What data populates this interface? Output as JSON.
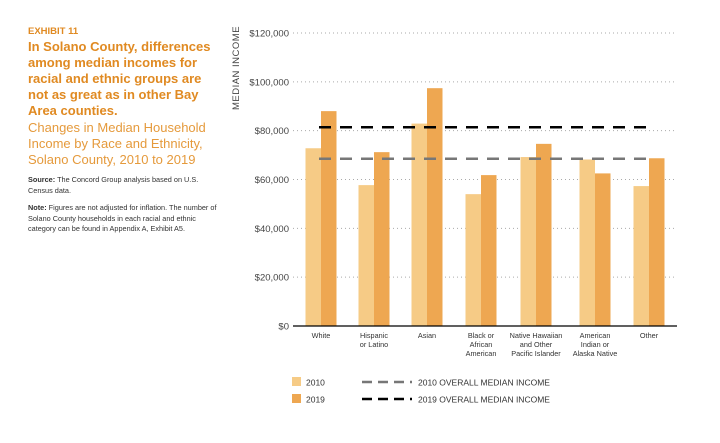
{
  "side": {
    "exhibit": "EXHIBIT 11",
    "headline": "In Solano County, differences among median incomes for racial and ethnic groups are not as great as in other Bay Area counties.",
    "subtitle": "Changes in Median Household Income by Race and Ethnicity, Solano County, 2010 to 2019",
    "source_label": "Source:",
    "source": " The Concord Group analysis based on U.S. Census data.",
    "note_label": "Note:",
    "note": " Figures are not adjusted for inflation. The number of Solano County households in each racial and ethnic category can be found in Appendix A, Exhibit A5."
  },
  "chart_data": {
    "type": "bar",
    "ylabel": "MEDIAN INCOME",
    "ylim": [
      0,
      120000
    ],
    "yticks": [
      0,
      20000,
      40000,
      60000,
      80000,
      100000,
      120000
    ],
    "ytick_labels": [
      "$0",
      "$20,000",
      "$40,000",
      "$60,000",
      "$80,000",
      "$100,000",
      "$120,000"
    ],
    "categories": [
      [
        "White"
      ],
      [
        "Hispanic",
        "or Latino"
      ],
      [
        "Asian"
      ],
      [
        "Black or",
        "African",
        "American"
      ],
      [
        "Native Hawaiian",
        "and Other",
        "Pacific Islander"
      ],
      [
        "American",
        "Indian or",
        "Alaska Native"
      ],
      [
        "Other"
      ]
    ],
    "series": [
      {
        "name": "2010",
        "color": "#f6cb86",
        "values": [
          72800,
          57700,
          82900,
          54000,
          69200,
          68200,
          57300
        ]
      },
      {
        "name": "2019",
        "color": "#eea751",
        "values": [
          88000,
          71200,
          97400,
          61800,
          74600,
          62500,
          68700
        ]
      }
    ],
    "reference_lines": [
      {
        "name": "2010 OVERALL MEDIAN INCOME",
        "value": 68500,
        "color": "#777777"
      },
      {
        "name": "2019 OVERALL MEDIAN INCOME",
        "value": 81400,
        "color": "#000000"
      }
    ],
    "grid": true,
    "legend": "bottom"
  }
}
